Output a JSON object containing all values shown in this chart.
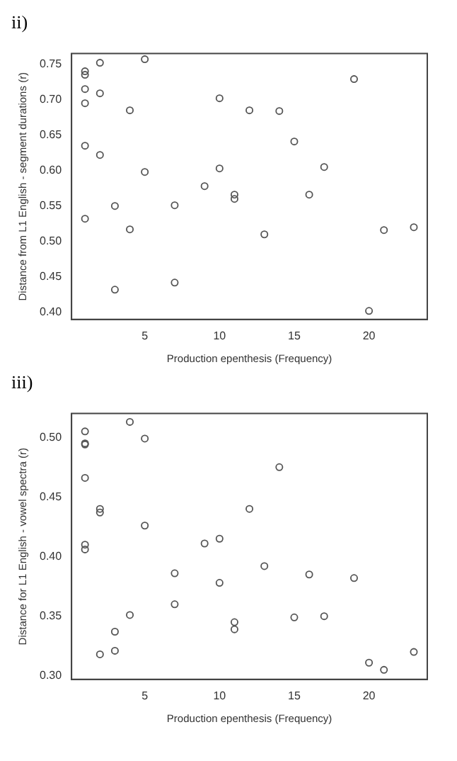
{
  "chart_data": [
    {
      "type": "scatter",
      "title": "ii)",
      "xlabel": "Production epenthesis (Frequency)",
      "ylabel": "Distance from L1 English - segment durations (r)",
      "marker": "circle",
      "grid": false,
      "legend": false,
      "xlim": [
        0.1,
        23.9
      ],
      "xticks": [
        5,
        10,
        15,
        20
      ],
      "ylim": [
        0.39,
        0.765
      ],
      "yticks": [
        {
          "value": 0.4,
          "label": "0.40"
        },
        {
          "value": 0.45,
          "label": "0.45"
        },
        {
          "value": 0.5,
          "label": "0.50"
        },
        {
          "value": 0.55,
          "label": "0.55"
        },
        {
          "value": 0.6,
          "label": "0.60"
        },
        {
          "value": 0.65,
          "label": "0.65"
        },
        {
          "value": 0.7,
          "label": "0.70"
        },
        {
          "value": 0.75,
          "label": "0.75"
        }
      ],
      "series": [
        {
          "color": "#555555",
          "x": [
            1,
            1,
            1,
            1,
            1,
            1,
            2,
            2,
            2,
            3,
            3,
            4,
            4,
            5,
            5,
            7,
            7,
            9,
            10,
            10,
            11,
            11,
            12,
            13,
            14,
            15,
            16,
            17,
            19,
            20,
            21,
            23
          ],
          "values": [
            0.74,
            0.735,
            0.715,
            0.695,
            0.635,
            0.532,
            0.752,
            0.709,
            0.622,
            0.55,
            0.432,
            0.685,
            0.517,
            0.757,
            0.598,
            0.551,
            0.442,
            0.578,
            0.702,
            0.603,
            0.566,
            0.56,
            0.685,
            0.51,
            0.684,
            0.641,
            0.566,
            0.605,
            0.729,
            0.402,
            0.516,
            0.52
          ]
        }
      ]
    },
    {
      "type": "scatter",
      "title": "iii)",
      "xlabel": "Production epenthesis (Frequency)",
      "ylabel": "Distance for L1 English - vowel spectra (r)",
      "marker": "circle",
      "grid": false,
      "legend": false,
      "xlim": [
        0.1,
        23.9
      ],
      "xticks": [
        5,
        10,
        15,
        20
      ],
      "ylim": [
        0.297,
        0.52
      ],
      "yticks": [
        {
          "value": 0.3,
          "label": "0.30"
        },
        {
          "value": 0.35,
          "label": "0.35"
        },
        {
          "value": 0.4,
          "label": "0.40"
        },
        {
          "value": 0.45,
          "label": "0.45"
        },
        {
          "value": 0.5,
          "label": "0.50"
        }
      ],
      "series": [
        {
          "color": "#555555",
          "x": [
            1,
            1,
            1,
            1,
            1,
            1,
            2,
            2,
            2,
            3,
            3,
            4,
            4,
            5,
            5,
            7,
            7,
            9,
            10,
            10,
            11,
            11,
            12,
            13,
            14,
            15,
            16,
            17,
            19,
            20,
            21,
            23
          ],
          "values": [
            0.505,
            0.495,
            0.494,
            0.466,
            0.41,
            0.406,
            0.44,
            0.437,
            0.318,
            0.337,
            0.321,
            0.513,
            0.351,
            0.499,
            0.426,
            0.386,
            0.36,
            0.411,
            0.415,
            0.378,
            0.345,
            0.339,
            0.44,
            0.392,
            0.475,
            0.349,
            0.385,
            0.35,
            0.382,
            0.311,
            0.305,
            0.32
          ]
        }
      ]
    }
  ]
}
